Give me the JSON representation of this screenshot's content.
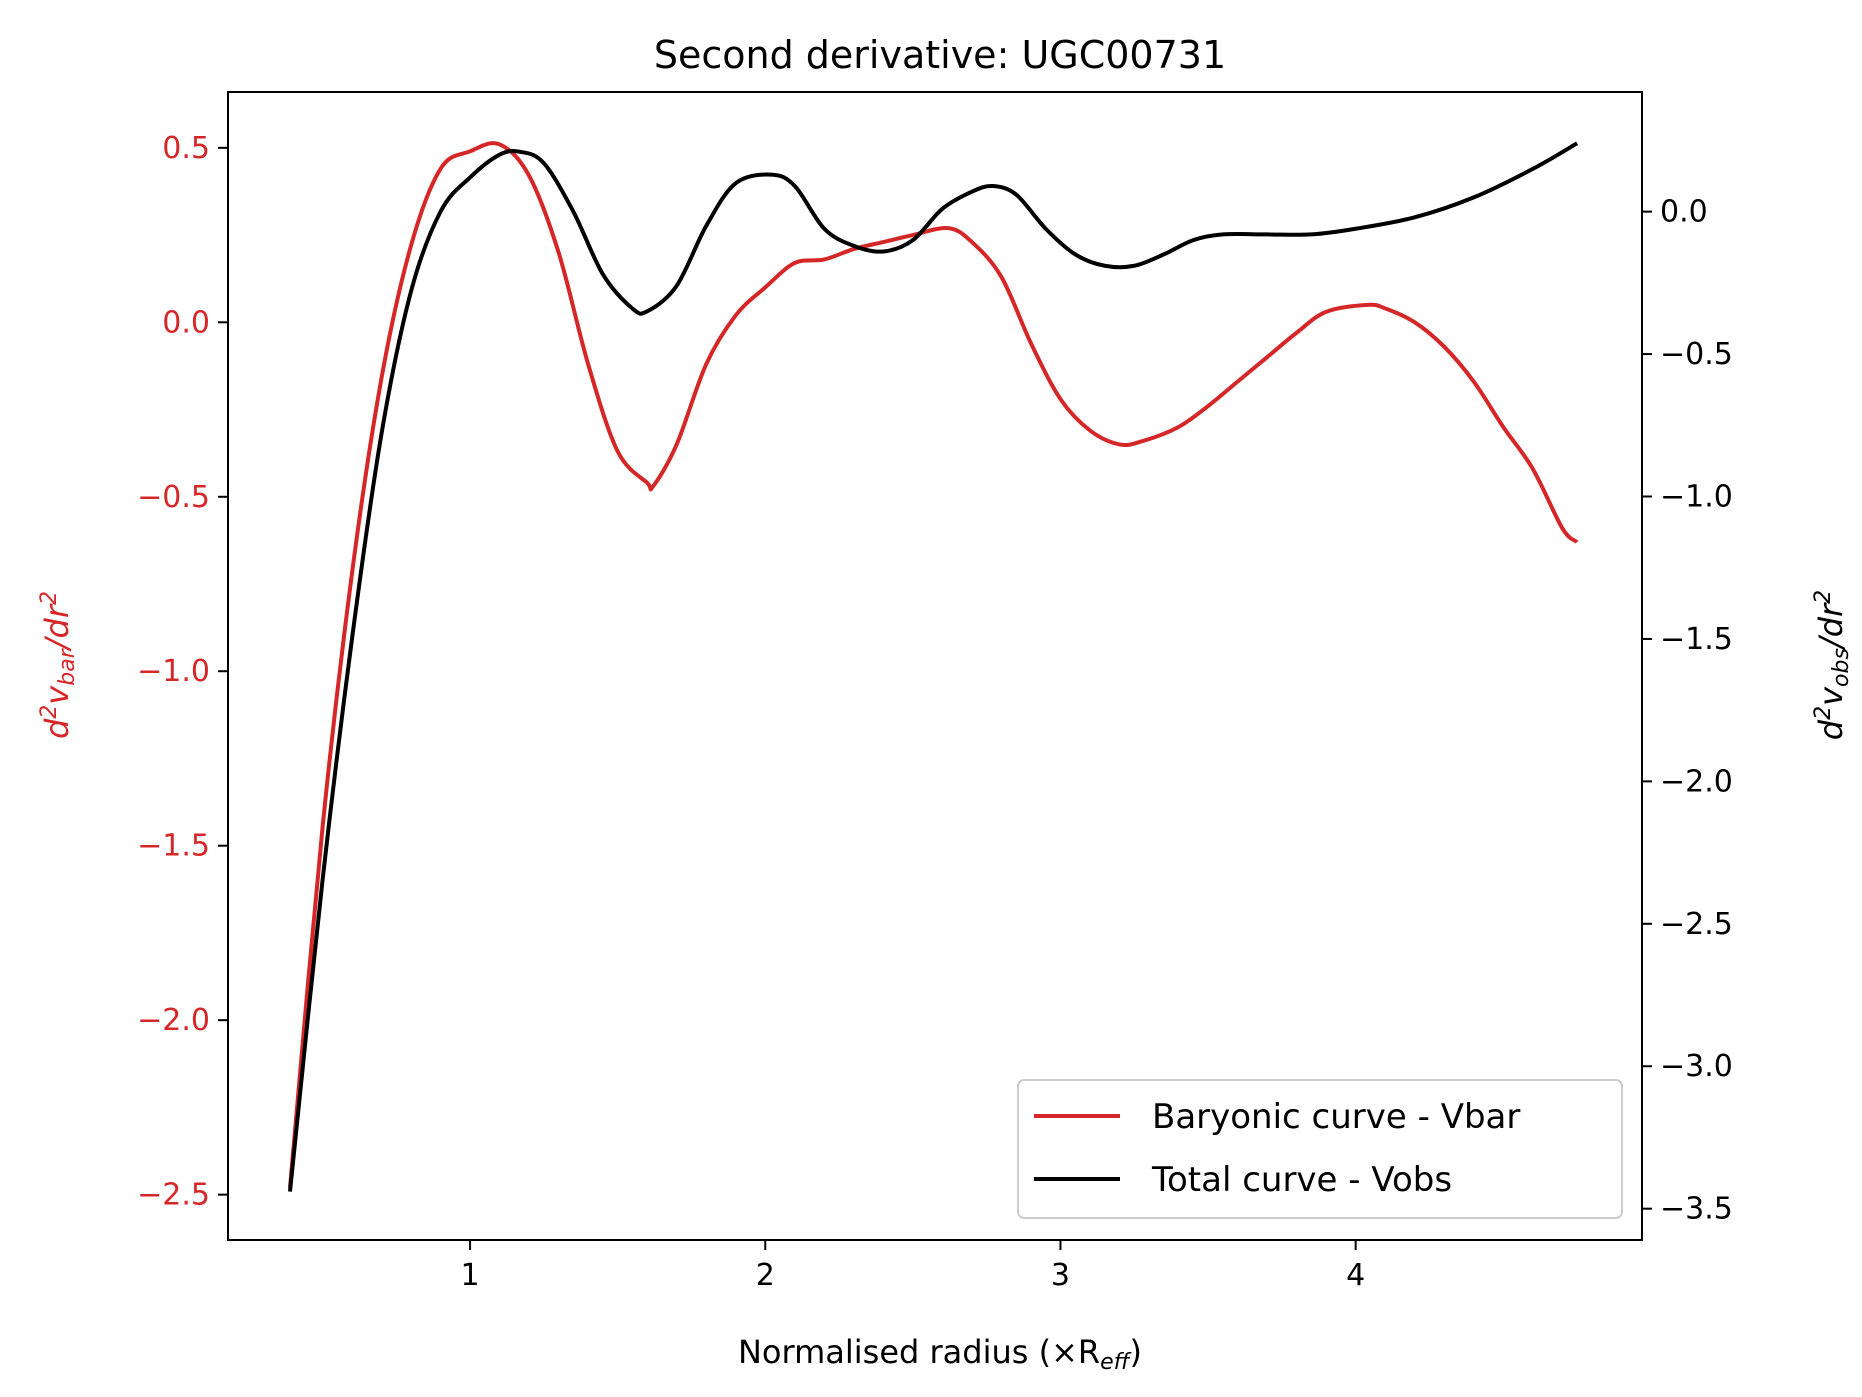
{
  "chart_data": {
    "type": "line",
    "title": "Second derivative: UGC00731",
    "xlabel": "Normalised radius (×R",
    "xlabel_sub": "eff",
    "xlabel_close": ")",
    "ylabel_left": {
      "d": "d",
      "sup": "2",
      "v": "v",
      "sub": "bar",
      "rest": "/dr",
      "sup2": "2"
    },
    "ylabel_right": {
      "d": "d",
      "sup": "2",
      "v": "v",
      "sub": "obs",
      "rest": "/dr",
      "sup2": "2"
    },
    "xlim": [
      0.18,
      4.97
    ],
    "ylim_left": [
      -2.63,
      0.66
    ],
    "ylim_right": [
      -3.61,
      0.42
    ],
    "x_ticks": [
      {
        "value": 1,
        "label": "1"
      },
      {
        "value": 2,
        "label": "2"
      },
      {
        "value": 3,
        "label": "3"
      },
      {
        "value": 4,
        "label": "4"
      }
    ],
    "y_ticks_left": [
      {
        "value": 0.5,
        "label": "0.5"
      },
      {
        "value": 0.0,
        "label": "0.0"
      },
      {
        "value": -0.5,
        "label": "−0.5"
      },
      {
        "value": -1.0,
        "label": "−1.0"
      },
      {
        "value": -1.5,
        "label": "−1.5"
      },
      {
        "value": -2.0,
        "label": "−2.0"
      },
      {
        "value": -2.5,
        "label": "−2.5"
      }
    ],
    "y_ticks_right": [
      {
        "value": 0.0,
        "label": "0.0"
      },
      {
        "value": -0.5,
        "label": "−0.5"
      },
      {
        "value": -1.0,
        "label": "−1.0"
      },
      {
        "value": -1.5,
        "label": "−1.5"
      },
      {
        "value": -2.0,
        "label": "−2.0"
      },
      {
        "value": -2.5,
        "label": "−2.5"
      },
      {
        "value": -3.0,
        "label": "−3.0"
      },
      {
        "value": -3.5,
        "label": "−3.5"
      }
    ],
    "colors": {
      "left_axis": "#d62728",
      "right_axis": "#000000"
    },
    "legend_position": "lower-right",
    "series": [
      {
        "name": "Baryonic curve - Vbar",
        "axis": "left",
        "color": "#d62728",
        "x": [
          0.39,
          0.5,
          0.6,
          0.7,
          0.8,
          0.9,
          1.0,
          1.1,
          1.2,
          1.3,
          1.4,
          1.5,
          1.6,
          1.62,
          1.7,
          1.8,
          1.9,
          2.0,
          2.1,
          2.2,
          2.3,
          2.4,
          2.5,
          2.62,
          2.7,
          2.8,
          2.9,
          3.0,
          3.1,
          3.2,
          3.28,
          3.4,
          3.5,
          3.6,
          3.7,
          3.8,
          3.9,
          4.04,
          4.1,
          4.2,
          4.3,
          4.4,
          4.5,
          4.6,
          4.7,
          4.75
        ],
        "y": [
          -2.48,
          -1.45,
          -0.72,
          -0.16,
          0.22,
          0.44,
          0.49,
          0.51,
          0.42,
          0.2,
          -0.12,
          -0.37,
          -0.46,
          -0.47,
          -0.35,
          -0.12,
          0.02,
          0.1,
          0.17,
          0.18,
          0.21,
          0.23,
          0.25,
          0.27,
          0.23,
          0.13,
          -0.06,
          -0.22,
          -0.31,
          -0.35,
          -0.34,
          -0.3,
          -0.24,
          -0.17,
          -0.1,
          -0.03,
          0.03,
          0.05,
          0.04,
          0.0,
          -0.07,
          -0.17,
          -0.3,
          -0.42,
          -0.59,
          -0.63
        ]
      },
      {
        "name": "Total curve - Vobs",
        "axis": "right",
        "color": "#000000",
        "x": [
          0.39,
          0.5,
          0.6,
          0.7,
          0.8,
          0.9,
          1.0,
          1.1,
          1.17,
          1.25,
          1.35,
          1.45,
          1.55,
          1.6,
          1.7,
          1.8,
          1.9,
          2.02,
          2.1,
          2.2,
          2.3,
          2.4,
          2.5,
          2.6,
          2.7,
          2.77,
          2.85,
          2.95,
          3.05,
          3.15,
          3.25,
          3.35,
          3.45,
          3.55,
          3.7,
          3.85,
          4.0,
          4.2,
          4.4,
          4.6,
          4.75
        ],
        "y": [
          -3.44,
          -2.35,
          -1.5,
          -0.78,
          -0.28,
          0.0,
          0.12,
          0.2,
          0.21,
          0.17,
          0.0,
          -0.22,
          -0.34,
          -0.35,
          -0.26,
          -0.05,
          0.1,
          0.13,
          0.09,
          -0.06,
          -0.12,
          -0.14,
          -0.1,
          0.01,
          0.07,
          0.09,
          0.06,
          -0.06,
          -0.15,
          -0.19,
          -0.19,
          -0.15,
          -0.1,
          -0.08,
          -0.08,
          -0.08,
          -0.06,
          -0.02,
          0.05,
          0.15,
          0.24
        ]
      }
    ]
  }
}
